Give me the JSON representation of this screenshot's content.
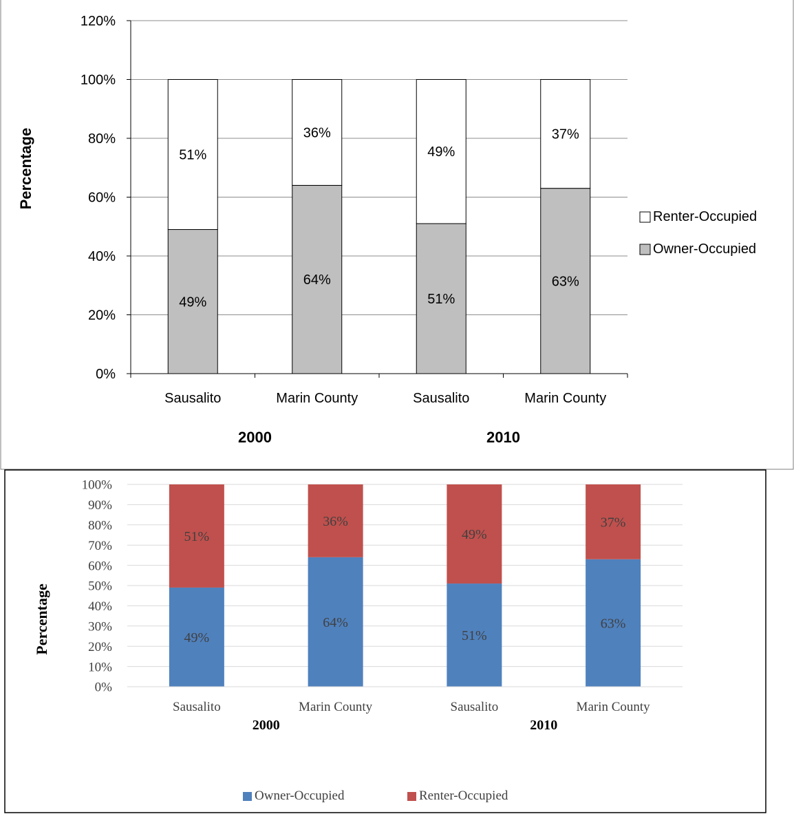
{
  "chart_data": [
    {
      "type": "bar",
      "stacked": true,
      "style": "grayscale",
      "categories": [
        "Sausalito",
        "Marin County",
        "Sausalito",
        "Marin County"
      ],
      "groups": [
        {
          "label": "2000",
          "categories": [
            0,
            1
          ]
        },
        {
          "label": "2010",
          "categories": [
            2,
            3
          ]
        }
      ],
      "series": [
        {
          "name": "Owner-Occupied",
          "values": [
            49,
            64,
            51,
            63
          ],
          "labels": [
            "49%",
            "64%",
            "51%",
            "63%"
          ],
          "color": "#bfbfbf"
        },
        {
          "name": "Renter-Occupied",
          "values": [
            51,
            36,
            49,
            37
          ],
          "labels": [
            "51%",
            "36%",
            "49%",
            "37%"
          ],
          "color": "#ffffff"
        }
      ],
      "title": "",
      "xlabel": "",
      "ylabel": "Percentage",
      "ylim": [
        0,
        120
      ],
      "yticks": [
        0,
        20,
        40,
        60,
        80,
        100,
        120
      ],
      "ytick_labels": [
        "0%",
        "20%",
        "40%",
        "60%",
        "80%",
        "100%",
        "120%"
      ],
      "grid": true,
      "legend": {
        "placement": "right",
        "order": [
          "Renter-Occupied",
          "Owner-Occupied"
        ]
      }
    },
    {
      "type": "bar",
      "stacked": true,
      "style": "color",
      "categories": [
        "Sausalito",
        "Marin County",
        "Sausalito",
        "Marin County"
      ],
      "groups": [
        {
          "label": "2000",
          "categories": [
            0,
            1
          ]
        },
        {
          "label": "2010",
          "categories": [
            2,
            3
          ]
        }
      ],
      "series": [
        {
          "name": "Owner-Occupied",
          "values": [
            49,
            64,
            51,
            63
          ],
          "labels": [
            "49%",
            "64%",
            "51%",
            "63%"
          ],
          "color": "#4f81bd"
        },
        {
          "name": "Renter-Occupied",
          "values": [
            51,
            36,
            49,
            37
          ],
          "labels": [
            "51%",
            "36%",
            "49%",
            "37%"
          ],
          "color": "#c0504d"
        }
      ],
      "title": "",
      "xlabel": "",
      "ylabel": "Percentage",
      "ylim": [
        0,
        100
      ],
      "yticks": [
        0,
        10,
        20,
        30,
        40,
        50,
        60,
        70,
        80,
        90,
        100
      ],
      "ytick_labels": [
        "0%",
        "10%",
        "20%",
        "30%",
        "40%",
        "50%",
        "60%",
        "70%",
        "80%",
        "90%",
        "100%"
      ],
      "grid": true,
      "legend": {
        "placement": "bottom",
        "order": [
          "Owner-Occupied",
          "Renter-Occupied"
        ]
      }
    }
  ]
}
